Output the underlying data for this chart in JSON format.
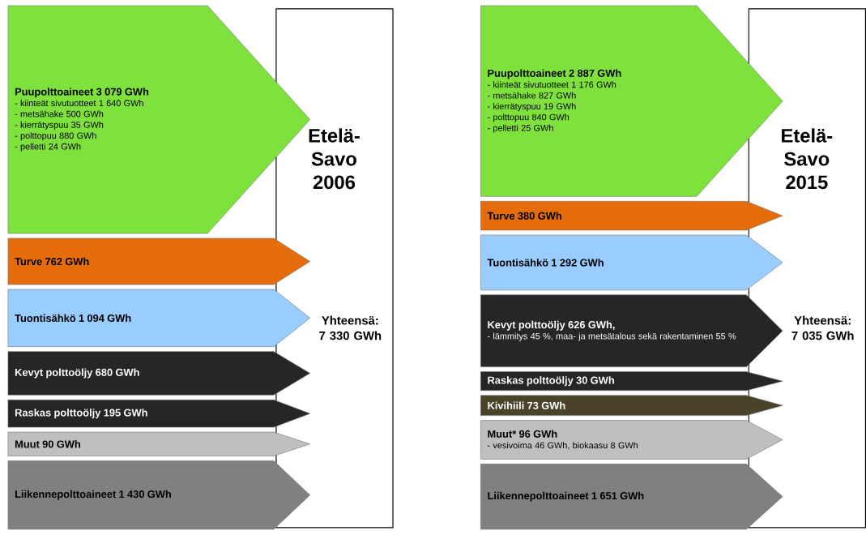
{
  "chart_data": [
    {
      "type": "other",
      "title": "Etelä-Savo 2006",
      "categories": [
        "Puupolttoaineet",
        "Turve",
        "Tuontisähkö",
        "Kevyt polttoöljy",
        "Raskas polttoöljy",
        "Muut",
        "Liikennepolttoaineet"
      ],
      "values": [
        3079,
        762,
        1094,
        680,
        195,
        90,
        1430
      ],
      "value_labels": [
        "3 079 GWh",
        "762 GWh",
        "1 094 GWh",
        "680 GWh",
        "195 GWh",
        "90 GWh",
        "1 430 GWh"
      ],
      "colors": [
        "#7fe13c",
        "#e46c0a",
        "#99ccff",
        "#262626",
        "#262626",
        "#bfbfbf",
        "#808080"
      ],
      "annotations": [
        {
          "text": "- kiinteät sivutuotteet 1 640 GWh",
          "x": "Puupolttoaineet"
        },
        {
          "text": "- metsähake 500 GWh",
          "x": "Puupolttoaineet"
        },
        {
          "text": "- kierrätyspuu 35 GWh",
          "x": "Puupolttoaineet"
        },
        {
          "text": "- polttopuu 880 GWh",
          "x": "Puupolttoaineet"
        },
        {
          "text": "- pelletti 24 GWh",
          "x": "Puupolttoaineet"
        },
        "Yhteensä: 7 330 GWh"
      ]
    },
    {
      "type": "other",
      "title": "Etelä-Savo 2015",
      "categories": [
        "Puupolttoaineet",
        "Turve",
        "Tuontisähkö",
        "Kevyt polttoöljy",
        "Raskas polttoöljy",
        "Kivihiili",
        "Muut*",
        "Liikennepolttoaineet"
      ],
      "values": [
        2887,
        380,
        1292,
        626,
        30,
        73,
        96,
        1651
      ],
      "value_labels": [
        "2 887 GWh",
        "380 GWh",
        "1 292 GWh",
        "626 GWh,",
        "30 GWh",
        "73 GWh",
        "96 GWh",
        "1 651 GWh"
      ],
      "colors": [
        "#7fe13c",
        "#e46c0a",
        "#99ccff",
        "#262626",
        "#262626",
        "#4a4329",
        "#bfbfbf",
        "#808080"
      ],
      "annotations": [
        {
          "text": "- kiinteät sivutuotteet 1 176 GWh",
          "x": "Puupolttoaineet"
        },
        {
          "text": "- metsähake 827 GWh",
          "x": "Puupolttoaineet"
        },
        {
          "text": "- kierrätyspuu 19 GWh",
          "x": "Puupolttoaineet"
        },
        {
          "text": "- polttopuu 840 GWh",
          "x": "Puupolttoaineet"
        },
        {
          "text": "- pelletti 25 GWh",
          "x": "Puupolttoaineet"
        },
        {
          "text": "- lämmitys 45 %, maa- ja metsätalous sekä rakentaminen 55 %",
          "x": "Kevyt polttoöljy"
        },
        {
          "text": "- vesivoima 46 GWh, biokaasu 8 GWh",
          "x": "Muut*"
        },
        "Yhteensä: 7 035 GWh"
      ]
    }
  ]
}
